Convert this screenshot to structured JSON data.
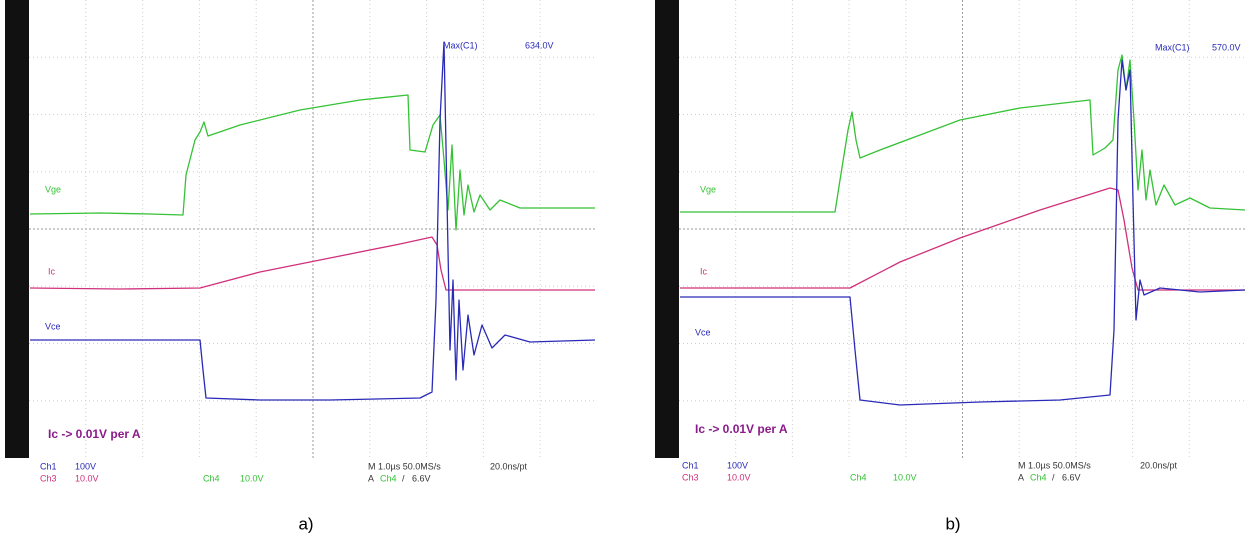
{
  "panels": [
    {
      "caption": "a)",
      "max_label": "Max(C1)",
      "max_value": "634.0V",
      "traces": {
        "vge": "Vge",
        "ic": "Ic",
        "vce": "Vce"
      },
      "note": "Ic -> 0.01V per A",
      "status": {
        "ch1": "Ch1",
        "ch1_scale": "100V",
        "ch3": "Ch3",
        "ch3_scale": "10.0V",
        "ch4": "Ch4",
        "ch4_scale": "10.0V",
        "timebase": "M 1.0µs 50.0MS/s",
        "resolution": "20.0ns/pt",
        "trigger": "A",
        "trigger_ch": "Ch4",
        "trigger_slope": "/",
        "trigger_level": "6.6V"
      }
    },
    {
      "caption": "b)",
      "max_label": "Max(C1)",
      "max_value": "570.0V",
      "traces": {
        "vge": "Vge",
        "ic": "Ic",
        "vce": "Vce"
      },
      "note": "Ic -> 0.01V per A",
      "status": {
        "ch1": "Ch1",
        "ch1_scale": "100V",
        "ch3": "Ch3",
        "ch3_scale": "10.0V",
        "ch4": "Ch4",
        "ch4_scale": "10.0V",
        "timebase": "M 1.0µs 50.0MS/s",
        "resolution": "20.0ns/pt",
        "trigger": "A",
        "trigger_ch": "Ch4",
        "trigger_slope": "/",
        "trigger_level": "6.6V"
      }
    }
  ]
}
